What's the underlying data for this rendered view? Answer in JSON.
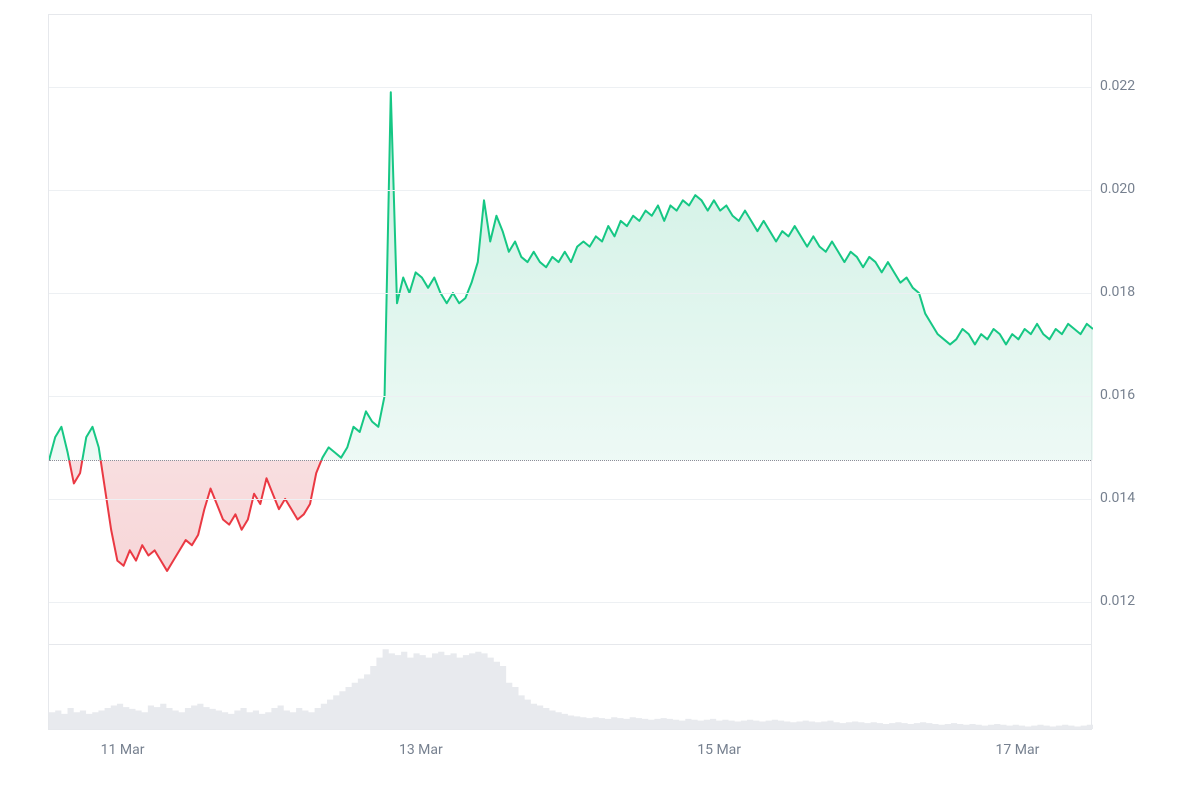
{
  "chart": {
    "type": "area-baseline",
    "background_color": "#ffffff",
    "border_color": "#e6e8ec",
    "grid_color": "#edf0f3",
    "baseline_color": "#8a8f99",
    "baseline_style": "dotted",
    "label_color": "#76808f",
    "label_fontsize": 14,
    "up_line_color": "#16c784",
    "up_fill_color": "#c8eee0",
    "down_line_color": "#ea3943",
    "down_fill_color": "#f6d2d4",
    "volume_fill_color": "#e8eaee",
    "line_width": 2,
    "y_axis": {
      "min": 0.0112,
      "max": 0.0234,
      "ticks": [
        0.012,
        0.014,
        0.016,
        0.018,
        0.02,
        0.022
      ],
      "tick_labels": [
        "0.012",
        "0.014",
        "0.016",
        "0.018",
        "0.020",
        "0.022"
      ]
    },
    "x_axis": {
      "min": 0,
      "max": 168,
      "ticks": [
        12,
        60,
        108,
        156
      ],
      "tick_labels": [
        "11 Mar",
        "13 Mar",
        "15 Mar",
        "17 Mar"
      ]
    },
    "baseline_value": 0.01475,
    "series": [
      {
        "x": 0,
        "y": 0.01475
      },
      {
        "x": 1,
        "y": 0.0152
      },
      {
        "x": 2,
        "y": 0.0154
      },
      {
        "x": 3,
        "y": 0.0149
      },
      {
        "x": 4,
        "y": 0.0143
      },
      {
        "x": 5,
        "y": 0.0145
      },
      {
        "x": 6,
        "y": 0.0152
      },
      {
        "x": 7,
        "y": 0.0154
      },
      {
        "x": 8,
        "y": 0.015
      },
      {
        "x": 9,
        "y": 0.0142
      },
      {
        "x": 10,
        "y": 0.0134
      },
      {
        "x": 11,
        "y": 0.0128
      },
      {
        "x": 12,
        "y": 0.0127
      },
      {
        "x": 13,
        "y": 0.013
      },
      {
        "x": 14,
        "y": 0.0128
      },
      {
        "x": 15,
        "y": 0.0131
      },
      {
        "x": 16,
        "y": 0.0129
      },
      {
        "x": 17,
        "y": 0.013
      },
      {
        "x": 18,
        "y": 0.0128
      },
      {
        "x": 19,
        "y": 0.0126
      },
      {
        "x": 20,
        "y": 0.0128
      },
      {
        "x": 21,
        "y": 0.013
      },
      {
        "x": 22,
        "y": 0.0132
      },
      {
        "x": 23,
        "y": 0.0131
      },
      {
        "x": 24,
        "y": 0.0133
      },
      {
        "x": 25,
        "y": 0.0138
      },
      {
        "x": 26,
        "y": 0.0142
      },
      {
        "x": 27,
        "y": 0.0139
      },
      {
        "x": 28,
        "y": 0.0136
      },
      {
        "x": 29,
        "y": 0.0135
      },
      {
        "x": 30,
        "y": 0.0137
      },
      {
        "x": 31,
        "y": 0.0134
      },
      {
        "x": 32,
        "y": 0.0136
      },
      {
        "x": 33,
        "y": 0.0141
      },
      {
        "x": 34,
        "y": 0.0139
      },
      {
        "x": 35,
        "y": 0.0144
      },
      {
        "x": 36,
        "y": 0.0141
      },
      {
        "x": 37,
        "y": 0.0138
      },
      {
        "x": 38,
        "y": 0.014
      },
      {
        "x": 39,
        "y": 0.0138
      },
      {
        "x": 40,
        "y": 0.0136
      },
      {
        "x": 41,
        "y": 0.0137
      },
      {
        "x": 42,
        "y": 0.0139
      },
      {
        "x": 43,
        "y": 0.0145
      },
      {
        "x": 44,
        "y": 0.0148
      },
      {
        "x": 45,
        "y": 0.015
      },
      {
        "x": 46,
        "y": 0.0149
      },
      {
        "x": 47,
        "y": 0.0148
      },
      {
        "x": 48,
        "y": 0.015
      },
      {
        "x": 49,
        "y": 0.0154
      },
      {
        "x": 50,
        "y": 0.0153
      },
      {
        "x": 51,
        "y": 0.0157
      },
      {
        "x": 52,
        "y": 0.0155
      },
      {
        "x": 53,
        "y": 0.0154
      },
      {
        "x": 54,
        "y": 0.016
      },
      {
        "x": 55,
        "y": 0.0219
      },
      {
        "x": 56,
        "y": 0.0178
      },
      {
        "x": 57,
        "y": 0.0183
      },
      {
        "x": 58,
        "y": 0.018
      },
      {
        "x": 59,
        "y": 0.0184
      },
      {
        "x": 60,
        "y": 0.0183
      },
      {
        "x": 61,
        "y": 0.0181
      },
      {
        "x": 62,
        "y": 0.0183
      },
      {
        "x": 63,
        "y": 0.018
      },
      {
        "x": 64,
        "y": 0.0178
      },
      {
        "x": 65,
        "y": 0.018
      },
      {
        "x": 66,
        "y": 0.0178
      },
      {
        "x": 67,
        "y": 0.0179
      },
      {
        "x": 68,
        "y": 0.0182
      },
      {
        "x": 69,
        "y": 0.0186
      },
      {
        "x": 70,
        "y": 0.0198
      },
      {
        "x": 71,
        "y": 0.019
      },
      {
        "x": 72,
        "y": 0.0195
      },
      {
        "x": 73,
        "y": 0.0192
      },
      {
        "x": 74,
        "y": 0.0188
      },
      {
        "x": 75,
        "y": 0.019
      },
      {
        "x": 76,
        "y": 0.0187
      },
      {
        "x": 77,
        "y": 0.0186
      },
      {
        "x": 78,
        "y": 0.0188
      },
      {
        "x": 79,
        "y": 0.0186
      },
      {
        "x": 80,
        "y": 0.0185
      },
      {
        "x": 81,
        "y": 0.0187
      },
      {
        "x": 82,
        "y": 0.0186
      },
      {
        "x": 83,
        "y": 0.0188
      },
      {
        "x": 84,
        "y": 0.0186
      },
      {
        "x": 85,
        "y": 0.0189
      },
      {
        "x": 86,
        "y": 0.019
      },
      {
        "x": 87,
        "y": 0.0189
      },
      {
        "x": 88,
        "y": 0.0191
      },
      {
        "x": 89,
        "y": 0.019
      },
      {
        "x": 90,
        "y": 0.0193
      },
      {
        "x": 91,
        "y": 0.0191
      },
      {
        "x": 92,
        "y": 0.0194
      },
      {
        "x": 93,
        "y": 0.0193
      },
      {
        "x": 94,
        "y": 0.0195
      },
      {
        "x": 95,
        "y": 0.0194
      },
      {
        "x": 96,
        "y": 0.0196
      },
      {
        "x": 97,
        "y": 0.0195
      },
      {
        "x": 98,
        "y": 0.0197
      },
      {
        "x": 99,
        "y": 0.0194
      },
      {
        "x": 100,
        "y": 0.0197
      },
      {
        "x": 101,
        "y": 0.0196
      },
      {
        "x": 102,
        "y": 0.0198
      },
      {
        "x": 103,
        "y": 0.0197
      },
      {
        "x": 104,
        "y": 0.0199
      },
      {
        "x": 105,
        "y": 0.0198
      },
      {
        "x": 106,
        "y": 0.0196
      },
      {
        "x": 107,
        "y": 0.0198
      },
      {
        "x": 108,
        "y": 0.0196
      },
      {
        "x": 109,
        "y": 0.0197
      },
      {
        "x": 110,
        "y": 0.0195
      },
      {
        "x": 111,
        "y": 0.0194
      },
      {
        "x": 112,
        "y": 0.0196
      },
      {
        "x": 113,
        "y": 0.0194
      },
      {
        "x": 114,
        "y": 0.0192
      },
      {
        "x": 115,
        "y": 0.0194
      },
      {
        "x": 116,
        "y": 0.0192
      },
      {
        "x": 117,
        "y": 0.019
      },
      {
        "x": 118,
        "y": 0.0192
      },
      {
        "x": 119,
        "y": 0.0191
      },
      {
        "x": 120,
        "y": 0.0193
      },
      {
        "x": 121,
        "y": 0.0191
      },
      {
        "x": 122,
        "y": 0.0189
      },
      {
        "x": 123,
        "y": 0.0191
      },
      {
        "x": 124,
        "y": 0.0189
      },
      {
        "x": 125,
        "y": 0.0188
      },
      {
        "x": 126,
        "y": 0.019
      },
      {
        "x": 127,
        "y": 0.0188
      },
      {
        "x": 128,
        "y": 0.0186
      },
      {
        "x": 129,
        "y": 0.0188
      },
      {
        "x": 130,
        "y": 0.0187
      },
      {
        "x": 131,
        "y": 0.0185
      },
      {
        "x": 132,
        "y": 0.0187
      },
      {
        "x": 133,
        "y": 0.0186
      },
      {
        "x": 134,
        "y": 0.0184
      },
      {
        "x": 135,
        "y": 0.0186
      },
      {
        "x": 136,
        "y": 0.0184
      },
      {
        "x": 137,
        "y": 0.0182
      },
      {
        "x": 138,
        "y": 0.0183
      },
      {
        "x": 139,
        "y": 0.0181
      },
      {
        "x": 140,
        "y": 0.018
      },
      {
        "x": 141,
        "y": 0.0176
      },
      {
        "x": 142,
        "y": 0.0174
      },
      {
        "x": 143,
        "y": 0.0172
      },
      {
        "x": 144,
        "y": 0.0171
      },
      {
        "x": 145,
        "y": 0.017
      },
      {
        "x": 146,
        "y": 0.0171
      },
      {
        "x": 147,
        "y": 0.0173
      },
      {
        "x": 148,
        "y": 0.0172
      },
      {
        "x": 149,
        "y": 0.017
      },
      {
        "x": 150,
        "y": 0.0172
      },
      {
        "x": 151,
        "y": 0.0171
      },
      {
        "x": 152,
        "y": 0.0173
      },
      {
        "x": 153,
        "y": 0.0172
      },
      {
        "x": 154,
        "y": 0.017
      },
      {
        "x": 155,
        "y": 0.0172
      },
      {
        "x": 156,
        "y": 0.0171
      },
      {
        "x": 157,
        "y": 0.0173
      },
      {
        "x": 158,
        "y": 0.0172
      },
      {
        "x": 159,
        "y": 0.0174
      },
      {
        "x": 160,
        "y": 0.0172
      },
      {
        "x": 161,
        "y": 0.0171
      },
      {
        "x": 162,
        "y": 0.0173
      },
      {
        "x": 163,
        "y": 0.0172
      },
      {
        "x": 164,
        "y": 0.0174
      },
      {
        "x": 165,
        "y": 0.0173
      },
      {
        "x": 166,
        "y": 0.0172
      },
      {
        "x": 167,
        "y": 0.0174
      },
      {
        "x": 168,
        "y": 0.0173
      }
    ],
    "volume": [
      0.2,
      0.22,
      0.18,
      0.25,
      0.2,
      0.22,
      0.18,
      0.2,
      0.22,
      0.25,
      0.28,
      0.3,
      0.26,
      0.24,
      0.22,
      0.2,
      0.28,
      0.26,
      0.3,
      0.25,
      0.22,
      0.2,
      0.25,
      0.28,
      0.3,
      0.26,
      0.24,
      0.22,
      0.2,
      0.18,
      0.22,
      0.25,
      0.2,
      0.22,
      0.18,
      0.2,
      0.25,
      0.28,
      0.22,
      0.2,
      0.25,
      0.22,
      0.2,
      0.25,
      0.3,
      0.35,
      0.4,
      0.45,
      0.5,
      0.55,
      0.6,
      0.65,
      0.75,
      0.85,
      0.95,
      0.9,
      0.88,
      0.92,
      0.85,
      0.9,
      0.88,
      0.85,
      0.9,
      0.92,
      0.88,
      0.9,
      0.85,
      0.88,
      0.9,
      0.92,
      0.9,
      0.85,
      0.8,
      0.75,
      0.55,
      0.5,
      0.4,
      0.35,
      0.3,
      0.28,
      0.25,
      0.22,
      0.2,
      0.18,
      0.16,
      0.15,
      0.14,
      0.13,
      0.14,
      0.13,
      0.12,
      0.14,
      0.13,
      0.12,
      0.14,
      0.13,
      0.12,
      0.11,
      0.12,
      0.13,
      0.12,
      0.11,
      0.1,
      0.12,
      0.11,
      0.1,
      0.11,
      0.12,
      0.1,
      0.11,
      0.1,
      0.09,
      0.1,
      0.11,
      0.1,
      0.09,
      0.1,
      0.11,
      0.1,
      0.09,
      0.08,
      0.09,
      0.1,
      0.09,
      0.08,
      0.09,
      0.1,
      0.08,
      0.07,
      0.08,
      0.09,
      0.08,
      0.07,
      0.08,
      0.07,
      0.06,
      0.07,
      0.08,
      0.07,
      0.06,
      0.07,
      0.08,
      0.07,
      0.06,
      0.05,
      0.06,
      0.07,
      0.06,
      0.05,
      0.06,
      0.05,
      0.04,
      0.05,
      0.06,
      0.05,
      0.04,
      0.05,
      0.04,
      0.03,
      0.04,
      0.05,
      0.04,
      0.03,
      0.04,
      0.05,
      0.04,
      0.03,
      0.04,
      0.05
    ]
  }
}
